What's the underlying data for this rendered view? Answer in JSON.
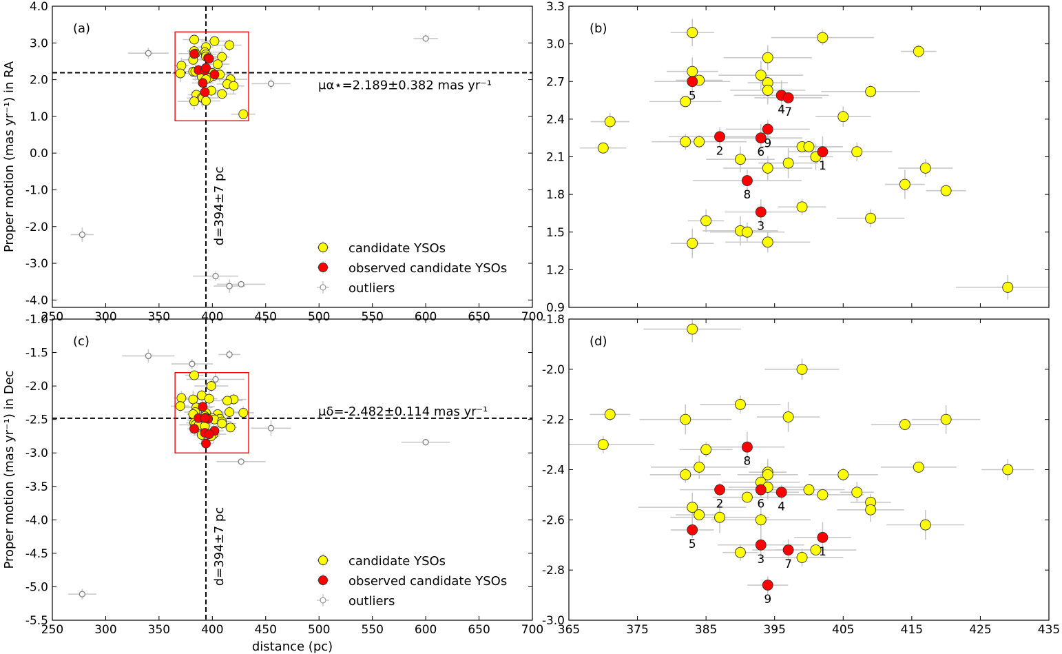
{
  "colors": {
    "candidate": "#ffff00",
    "observed": "#ff0000",
    "outlier_edge": "#808080",
    "errorbar": "#c8c8c8",
    "box": "#ff0000"
  },
  "chart_data": [
    {
      "id": "a",
      "type": "scatter",
      "panel_label": "(a)",
      "xlim": [
        250,
        700
      ],
      "ylim": [
        -4.2,
        4.0
      ],
      "x_ticks": [
        250,
        300,
        350,
        400,
        450,
        500,
        550,
        600,
        650,
        700
      ],
      "y_ticks": [
        "4.0",
        "3.0",
        "2.0",
        "1.0",
        "0.0",
        "-1.0",
        "-2.0",
        "-3.0",
        "-4.0"
      ],
      "y_tick_values": [
        4,
        3,
        2,
        1,
        0,
        -1,
        -2,
        -3,
        -4
      ],
      "ylabel": "Proper motion (mas yr⁻¹) in RA",
      "hline": 2.189,
      "hline_label": "μα⋆=2.189±0.382 mas yr⁻¹",
      "vline": 394,
      "vline_label": "d=394±7 pc",
      "box": {
        "x": [
          365,
          434
        ],
        "y": [
          0.88,
          3.3
        ]
      },
      "legend": {
        "entries": [
          "candidate YSOs",
          "observed candidate YSOs",
          "outliers"
        ],
        "placement": "lower-right"
      },
      "candidates": [
        [
          383,
          3.09
        ],
        [
          402,
          3.05
        ],
        [
          416,
          2.94
        ],
        [
          394,
          2.89
        ],
        [
          393,
          2.75
        ],
        [
          383,
          2.78
        ],
        [
          384,
          2.71
        ],
        [
          394,
          2.69
        ],
        [
          394,
          2.63
        ],
        [
          409,
          2.62
        ],
        [
          382,
          2.54
        ],
        [
          405,
          2.42
        ],
        [
          371,
          2.38
        ],
        [
          382,
          2.22
        ],
        [
          384,
          2.22
        ],
        [
          370,
          2.17
        ],
        [
          399,
          2.18
        ],
        [
          400,
          2.18
        ],
        [
          407,
          2.14
        ],
        [
          401,
          2.1
        ],
        [
          390,
          2.08
        ],
        [
          397,
          2.05
        ],
        [
          394,
          2.01
        ],
        [
          417,
          2.01
        ],
        [
          414,
          1.88
        ],
        [
          420,
          1.83
        ],
        [
          399,
          1.7
        ],
        [
          385,
          1.59
        ],
        [
          409,
          1.61
        ],
        [
          390,
          1.51
        ],
        [
          391,
          1.5
        ],
        [
          383,
          1.41
        ],
        [
          394,
          1.42
        ],
        [
          429,
          1.06
        ]
      ],
      "observed": [
        [
          402,
          2.14,
          "1"
        ],
        [
          387,
          2.26,
          "2"
        ],
        [
          393,
          1.66,
          "3"
        ],
        [
          396,
          2.59,
          "4"
        ],
        [
          383,
          2.7,
          "5"
        ],
        [
          393,
          2.25,
          "6"
        ],
        [
          397,
          2.57,
          "7"
        ],
        [
          391,
          1.91,
          "8"
        ],
        [
          394,
          2.32,
          "9"
        ]
      ],
      "outliers": [
        [
          340,
          2.72
        ],
        [
          600,
          3.12
        ],
        [
          455,
          1.89
        ],
        [
          278,
          -2.22
        ],
        [
          403,
          -3.35
        ],
        [
          416,
          -3.62
        ],
        [
          427,
          -3.57
        ]
      ]
    },
    {
      "id": "b",
      "type": "scatter",
      "panel_label": "(b)",
      "xlim": [
        365,
        435
      ],
      "ylim": [
        0.9,
        3.3
      ],
      "x_ticks": [],
      "y_ticks": [
        "3.3",
        "3.0",
        "2.7",
        "2.4",
        "2.1",
        "1.8",
        "1.5",
        "1.2",
        "0.9"
      ],
      "y_tick_values": [
        3.3,
        3.0,
        2.7,
        2.4,
        2.1,
        1.8,
        1.5,
        1.2,
        0.9
      ],
      "candidates": [
        [
          383,
          3.09
        ],
        [
          402,
          3.05
        ],
        [
          416,
          2.94
        ],
        [
          394,
          2.89
        ],
        [
          393,
          2.75
        ],
        [
          383,
          2.78
        ],
        [
          384,
          2.71
        ],
        [
          394,
          2.69
        ],
        [
          394,
          2.63
        ],
        [
          409,
          2.62
        ],
        [
          382,
          2.54
        ],
        [
          405,
          2.42
        ],
        [
          371,
          2.38
        ],
        [
          382,
          2.22
        ],
        [
          384,
          2.22
        ],
        [
          370,
          2.17
        ],
        [
          399,
          2.18
        ],
        [
          400,
          2.18
        ],
        [
          407,
          2.14
        ],
        [
          401,
          2.1
        ],
        [
          390,
          2.08
        ],
        [
          397,
          2.05
        ],
        [
          394,
          2.01
        ],
        [
          417,
          2.01
        ],
        [
          414,
          1.88
        ],
        [
          420,
          1.83
        ],
        [
          399,
          1.7
        ],
        [
          385,
          1.59
        ],
        [
          409,
          1.61
        ],
        [
          390,
          1.51
        ],
        [
          391,
          1.5
        ],
        [
          383,
          1.41
        ],
        [
          394,
          1.42
        ],
        [
          429,
          1.06
        ]
      ],
      "observed": [
        [
          402,
          2.14,
          "1"
        ],
        [
          387,
          2.26,
          "2"
        ],
        [
          393,
          1.66,
          "3"
        ],
        [
          396,
          2.59,
          "4"
        ],
        [
          383,
          2.7,
          "5"
        ],
        [
          393,
          2.25,
          "6"
        ],
        [
          397,
          2.57,
          "7"
        ],
        [
          391,
          1.91,
          "8"
        ],
        [
          394,
          2.32,
          "9"
        ]
      ]
    },
    {
      "id": "c",
      "type": "scatter",
      "panel_label": "(c)",
      "xlim": [
        250,
        700
      ],
      "ylim": [
        -5.5,
        -1.0
      ],
      "x_ticks": [
        250,
        300,
        350,
        400,
        450,
        500,
        550,
        600,
        650,
        700
      ],
      "y_ticks": [
        "-1.0",
        "-1.5",
        "-2.0",
        "-2.5",
        "-3.0",
        "-3.5",
        "-4.0",
        "-4.5",
        "-5.0",
        "-5.5"
      ],
      "y_tick_values": [
        -1.0,
        -1.5,
        -2.0,
        -2.5,
        -3.0,
        -3.5,
        -4.0,
        -4.5,
        -5.0,
        -5.5
      ],
      "xlabel": "distance (pc)",
      "ylabel": "Proper motion (mas yr⁻¹) in Dec",
      "hline": -2.482,
      "hline_label": "μδ=-2.482±0.114 mas yr⁻¹",
      "vline": 394,
      "vline_label": "d=394±7 pc",
      "box": {
        "x": [
          365,
          434
        ],
        "y": [
          -3.0,
          -1.8
        ]
      },
      "legend": {
        "entries": [
          "candidate YSOs",
          "observed candidate YSOs",
          "outliers"
        ],
        "placement": "lower-right"
      },
      "candidates": [
        [
          383,
          -1.84
        ],
        [
          399,
          -2.0
        ],
        [
          390,
          -2.14
        ],
        [
          371,
          -2.18
        ],
        [
          397,
          -2.19
        ],
        [
          382,
          -2.2
        ],
        [
          420,
          -2.2
        ],
        [
          414,
          -2.22
        ],
        [
          370,
          -2.3
        ],
        [
          385,
          -2.32
        ],
        [
          394,
          -2.4
        ],
        [
          384,
          -2.39
        ],
        [
          416,
          -2.39
        ],
        [
          405,
          -2.42
        ],
        [
          382,
          -2.42
        ],
        [
          429,
          -2.4
        ],
        [
          393,
          -2.45
        ],
        [
          394,
          -2.47
        ],
        [
          400,
          -2.48
        ],
        [
          407,
          -2.49
        ],
        [
          391,
          -2.51
        ],
        [
          402,
          -2.5
        ],
        [
          409,
          -2.53
        ],
        [
          409,
          -2.56
        ],
        [
          383,
          -2.55
        ],
        [
          384,
          -2.58
        ],
        [
          387,
          -2.59
        ],
        [
          393,
          -2.6
        ],
        [
          417,
          -2.62
        ],
        [
          390,
          -2.73
        ],
        [
          401,
          -2.72
        ],
        [
          399,
          -2.75
        ]
      ],
      "observed": [
        [
          402,
          -2.67,
          "1"
        ],
        [
          387,
          -2.48,
          "2"
        ],
        [
          393,
          -2.7,
          "3"
        ],
        [
          396,
          -2.49,
          "4"
        ],
        [
          383,
          -2.64,
          "5"
        ],
        [
          393,
          -2.48,
          "6"
        ],
        [
          397,
          -2.72,
          "7"
        ],
        [
          391,
          -2.31,
          "8"
        ],
        [
          394,
          -2.86,
          "9"
        ]
      ],
      "outliers": [
        [
          340,
          -1.55
        ],
        [
          381,
          -1.67
        ],
        [
          403,
          -1.9
        ],
        [
          416,
          -1.53
        ],
        [
          455,
          -2.63
        ],
        [
          600,
          -2.84
        ],
        [
          427,
          -3.13
        ],
        [
          278,
          -5.11
        ]
      ]
    },
    {
      "id": "d",
      "type": "scatter",
      "panel_label": "(d)",
      "xlim": [
        365,
        435
      ],
      "ylim": [
        -3.0,
        -1.8
      ],
      "x_ticks": [
        365,
        375,
        385,
        395,
        405,
        415,
        425,
        435
      ],
      "y_ticks": [
        "-1.8",
        "-2.0",
        "-2.2",
        "-2.4",
        "-2.6",
        "-2.8",
        "-3.0"
      ],
      "y_tick_values": [
        -1.8,
        -2.0,
        -2.2,
        -2.4,
        -2.6,
        -2.8,
        -3.0
      ],
      "candidates": [
        [
          383,
          -1.84
        ],
        [
          399,
          -2.0
        ],
        [
          390,
          -2.14
        ],
        [
          371,
          -2.18
        ],
        [
          397,
          -2.19
        ],
        [
          382,
          -2.2
        ],
        [
          420,
          -2.2
        ],
        [
          414,
          -2.22
        ],
        [
          370,
          -2.3
        ],
        [
          385,
          -2.32
        ],
        [
          394,
          -2.41
        ],
        [
          394,
          -2.42
        ],
        [
          384,
          -2.39
        ],
        [
          416,
          -2.39
        ],
        [
          405,
          -2.42
        ],
        [
          382,
          -2.42
        ],
        [
          429,
          -2.4
        ],
        [
          393,
          -2.45
        ],
        [
          394,
          -2.47
        ],
        [
          400,
          -2.48
        ],
        [
          407,
          -2.49
        ],
        [
          391,
          -2.51
        ],
        [
          402,
          -2.5
        ],
        [
          409,
          -2.53
        ],
        [
          409,
          -2.56
        ],
        [
          383,
          -2.55
        ],
        [
          384,
          -2.58
        ],
        [
          387,
          -2.59
        ],
        [
          393,
          -2.6
        ],
        [
          417,
          -2.62
        ],
        [
          390,
          -2.73
        ],
        [
          401,
          -2.72
        ],
        [
          399,
          -2.75
        ]
      ],
      "observed": [
        [
          402,
          -2.67,
          "1"
        ],
        [
          387,
          -2.48,
          "2"
        ],
        [
          393,
          -2.7,
          "3"
        ],
        [
          396,
          -2.49,
          "4"
        ],
        [
          383,
          -2.64,
          "5"
        ],
        [
          393,
          -2.48,
          "6"
        ],
        [
          397,
          -2.72,
          "7"
        ],
        [
          391,
          -2.31,
          "8"
        ],
        [
          394,
          -2.86,
          "9"
        ]
      ]
    }
  ]
}
